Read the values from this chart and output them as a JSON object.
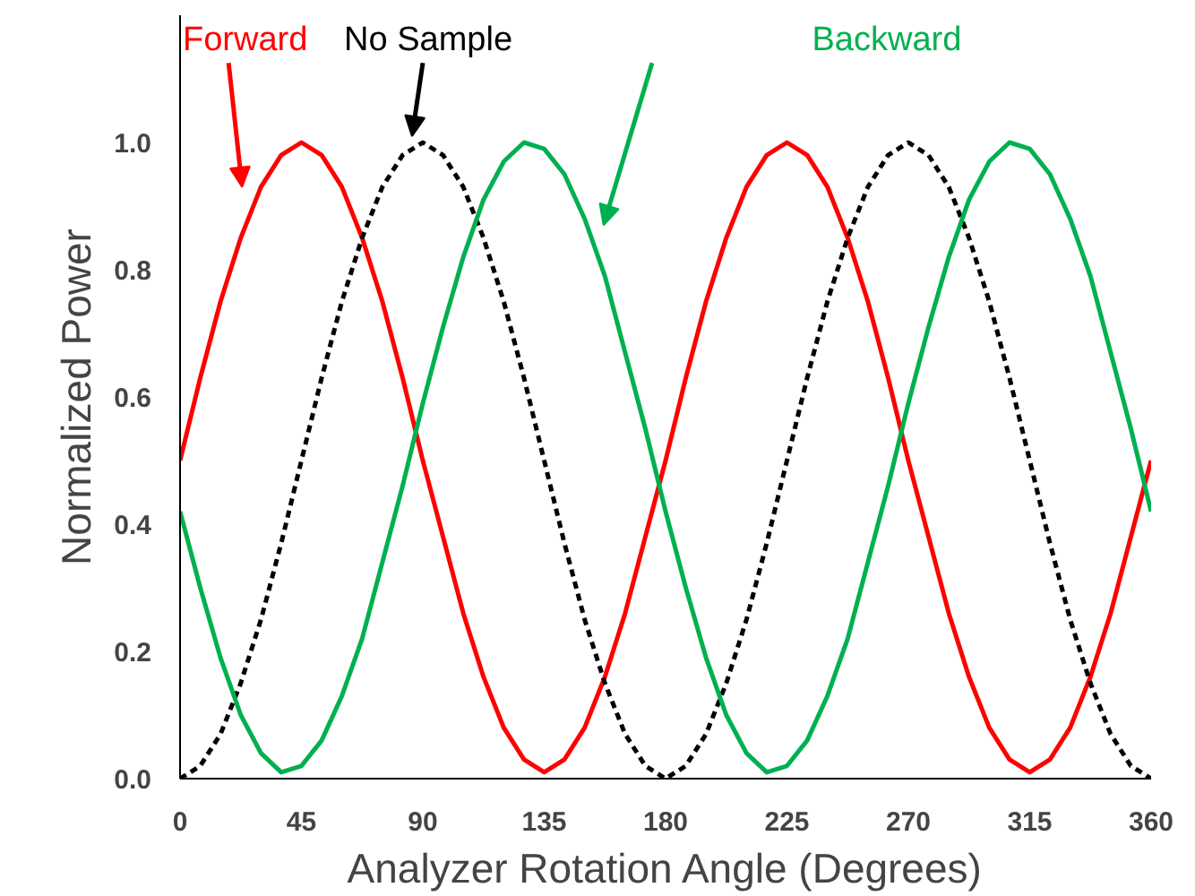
{
  "chart_data": {
    "type": "line",
    "xlabel": "Analyzer Rotation Angle (Degrees)",
    "ylabel": "Normalized Power",
    "x": [
      0,
      7.5,
      15,
      22.5,
      30,
      37.5,
      45,
      52.5,
      60,
      67.5,
      75,
      82.5,
      90,
      97.5,
      105,
      112.5,
      120,
      127.5,
      135,
      142.5,
      150,
      157.5,
      165,
      172.5,
      180,
      187.5,
      195,
      202.5,
      210,
      217.5,
      225,
      232.5,
      240,
      247.5,
      255,
      262.5,
      270,
      277.5,
      285,
      292.5,
      300,
      307.5,
      315,
      322.5,
      330,
      337.5,
      345,
      352.5,
      360
    ],
    "series": [
      {
        "name": "Forward",
        "color": "#ff0000",
        "line_style": "solid",
        "values": [
          0.5,
          0.63,
          0.75,
          0.85,
          0.93,
          0.98,
          1.0,
          0.98,
          0.93,
          0.85,
          0.75,
          0.63,
          0.5,
          0.38,
          0.26,
          0.16,
          0.08,
          0.03,
          0.01,
          0.03,
          0.08,
          0.16,
          0.26,
          0.38,
          0.5,
          0.63,
          0.75,
          0.85,
          0.93,
          0.98,
          1.0,
          0.98,
          0.93,
          0.85,
          0.75,
          0.63,
          0.5,
          0.38,
          0.26,
          0.16,
          0.08,
          0.03,
          0.01,
          0.03,
          0.08,
          0.16,
          0.26,
          0.38,
          0.5
        ]
      },
      {
        "name": "No Sample",
        "color": "#000000",
        "line_style": "dashed",
        "values": [
          0,
          0.02,
          0.07,
          0.15,
          0.25,
          0.37,
          0.5,
          0.63,
          0.75,
          0.85,
          0.93,
          0.98,
          1.0,
          0.98,
          0.93,
          0.85,
          0.75,
          0.63,
          0.5,
          0.37,
          0.25,
          0.15,
          0.07,
          0.02,
          0,
          0.02,
          0.07,
          0.15,
          0.25,
          0.37,
          0.5,
          0.63,
          0.75,
          0.85,
          0.93,
          0.98,
          1.0,
          0.98,
          0.93,
          0.85,
          0.75,
          0.63,
          0.5,
          0.37,
          0.25,
          0.15,
          0.07,
          0.02,
          0
        ]
      },
      {
        "name": "Backward",
        "color": "#00b050",
        "line_style": "solid",
        "values": [
          0.42,
          0.3,
          0.19,
          0.1,
          0.04,
          0.01,
          0.02,
          0.06,
          0.13,
          0.22,
          0.34,
          0.46,
          0.59,
          0.71,
          0.82,
          0.91,
          0.97,
          1.0,
          0.99,
          0.95,
          0.88,
          0.79,
          0.67,
          0.55,
          0.42,
          0.3,
          0.19,
          0.1,
          0.04,
          0.01,
          0.02,
          0.06,
          0.13,
          0.22,
          0.34,
          0.46,
          0.59,
          0.71,
          0.82,
          0.91,
          0.97,
          1.0,
          0.99,
          0.95,
          0.88,
          0.79,
          0.67,
          0.55,
          0.42
        ]
      }
    ],
    "xlim": [
      0,
      360
    ],
    "xticks": [
      0,
      45,
      90,
      135,
      180,
      225,
      270,
      315,
      360
    ],
    "ylim": [
      0,
      1.2
    ],
    "yticks": [
      {
        "value": 0,
        "label": "0.0"
      },
      {
        "value": 0.2,
        "label": "0.2"
      },
      {
        "value": 0.4,
        "label": "0.4"
      },
      {
        "value": 0.6,
        "label": "0.6"
      },
      {
        "value": 0.8,
        "label": "0.8"
      },
      {
        "value": 1.0,
        "label": "1.0"
      }
    ],
    "grid": false,
    "legend": false
  }
}
